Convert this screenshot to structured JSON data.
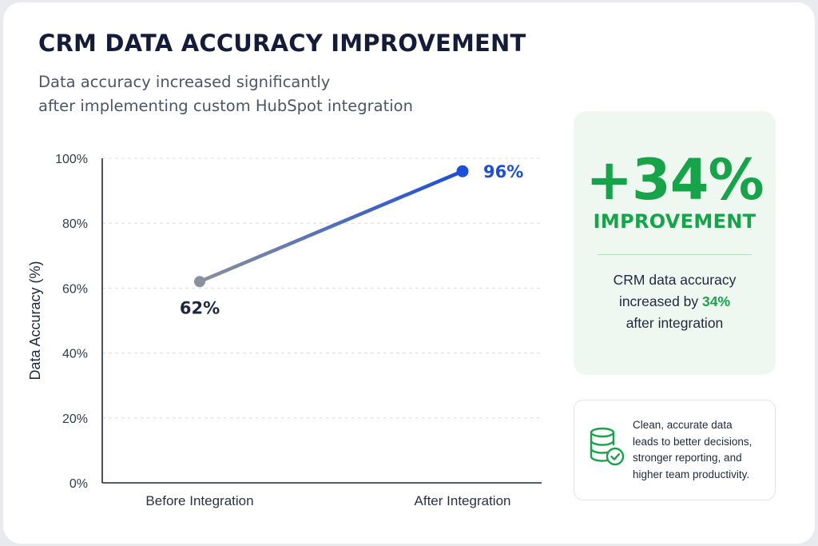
{
  "title": "CRM DATA ACCURACY IMPROVEMENT",
  "subtitle_lines": [
    "Data accuracy increased significantly",
    "after implementing custom HubSpot integration"
  ],
  "chart_data": {
    "type": "line",
    "categories": [
      "Before Integration",
      "After Integration"
    ],
    "values": [
      62,
      96
    ],
    "data_labels": [
      "62%",
      "96%"
    ],
    "ylabel": "Data Accuracy (%)",
    "ylim": [
      0,
      100
    ],
    "yticks": [
      0,
      20,
      40,
      60,
      80,
      100
    ],
    "ytick_labels": [
      "0%",
      "20%",
      "40%",
      "60%",
      "80%",
      "100%"
    ],
    "grid": true,
    "colors": {
      "start": "#8a919c",
      "end": "#1d4ed8"
    }
  },
  "improvement": {
    "value": "+34%",
    "label": "IMPROVEMENT",
    "desc_line1": "CRM data accuracy",
    "desc_line2_prefix": "increased by ",
    "desc_line2_highlight": "34%",
    "desc_line3": "after integration",
    "accent_color": "#16a34a"
  },
  "note": {
    "icon": "database-check-icon",
    "lines": [
      "Clean, accurate data",
      "leads to better decisions,",
      "stronger reporting, and",
      "higher team productivity."
    ]
  }
}
